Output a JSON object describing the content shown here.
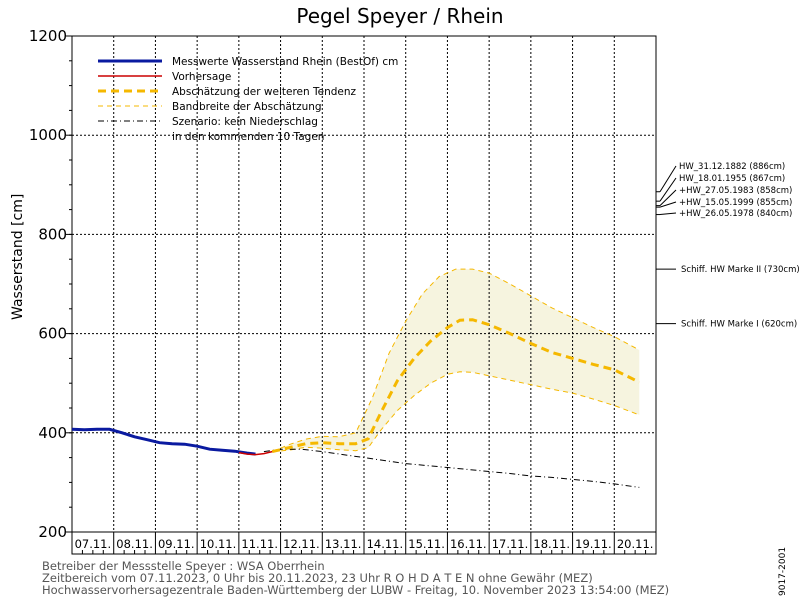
{
  "chart_data": {
    "type": "line",
    "title": "Pegel Speyer / Rhein",
    "ylabel": "Wasserstand [cm]",
    "ylim": [
      200,
      1200
    ],
    "yticks": [
      200,
      400,
      600,
      800,
      1000,
      1200
    ],
    "x_dates": [
      "07.11.",
      "08.11.",
      "09.11.",
      "10.11.",
      "11.11.",
      "12.11.",
      "13.11.",
      "14.11.",
      "15.11.",
      "16.11.",
      "17.11.",
      "18.11.",
      "19.11.",
      "20.11."
    ],
    "xlim_days": [
      0,
      14
    ],
    "grid": true,
    "legend_position": "top-left",
    "legend": [
      {
        "key": "measured",
        "label": "Messwerte Wasserstand Rhein (BestOf)   cm",
        "color": "#0a1aa0",
        "style": "solid-thick"
      },
      {
        "key": "forecast",
        "label": "Vorhersage",
        "color": "#cc0000",
        "style": "solid"
      },
      {
        "key": "trend",
        "label": "Abschätzung der weiteren Tendenz",
        "color": "#f5b800",
        "style": "dashed-thick"
      },
      {
        "key": "band",
        "label": "Bandbreite der Abschätzung",
        "color": "#f5b800",
        "style": "dashed-thin"
      },
      {
        "key": "scenario",
        "label": "Szenario: kein Niederschlag",
        "color": "#000000",
        "style": "dashdot"
      },
      {
        "key": "scenario2",
        "label": "in den kommenden 10 Tagen",
        "color": "",
        "style": "none"
      }
    ],
    "series": [
      {
        "key": "measured",
        "points": [
          [
            0.0,
            407
          ],
          [
            0.3,
            406
          ],
          [
            0.6,
            407
          ],
          [
            0.9,
            407
          ],
          [
            1.2,
            400
          ],
          [
            1.5,
            392
          ],
          [
            1.8,
            386
          ],
          [
            2.1,
            380
          ],
          [
            2.4,
            378
          ],
          [
            2.7,
            377
          ],
          [
            3.0,
            373
          ],
          [
            3.3,
            367
          ],
          [
            3.6,
            365
          ],
          [
            3.9,
            363
          ],
          [
            4.2,
            359
          ],
          [
            4.4,
            357
          ]
        ]
      },
      {
        "key": "forecast",
        "points": [
          [
            4.0,
            360
          ],
          [
            4.2,
            357
          ],
          [
            4.4,
            356
          ],
          [
            4.6,
            358
          ],
          [
            4.8,
            362
          ]
        ]
      },
      {
        "key": "trend",
        "points": [
          [
            4.8,
            362
          ],
          [
            5.2,
            370
          ],
          [
            5.6,
            378
          ],
          [
            6.0,
            380
          ],
          [
            6.4,
            378
          ],
          [
            6.8,
            378
          ],
          [
            7.1,
            388
          ],
          [
            7.4,
            440
          ],
          [
            7.8,
            505
          ],
          [
            8.2,
            550
          ],
          [
            8.6,
            585
          ],
          [
            9.0,
            612
          ],
          [
            9.3,
            627
          ],
          [
            9.6,
            628
          ],
          [
            10.0,
            618
          ],
          [
            10.5,
            600
          ],
          [
            11.0,
            580
          ],
          [
            11.5,
            562
          ],
          [
            12.0,
            550
          ],
          [
            12.5,
            538
          ],
          [
            13.0,
            527
          ],
          [
            13.6,
            502
          ]
        ]
      },
      {
        "key": "band_upper",
        "points": [
          [
            4.8,
            362
          ],
          [
            5.2,
            376
          ],
          [
            5.6,
            387
          ],
          [
            6.0,
            393
          ],
          [
            6.4,
            392
          ],
          [
            6.8,
            400
          ],
          [
            7.2,
            470
          ],
          [
            7.6,
            560
          ],
          [
            8.0,
            625
          ],
          [
            8.4,
            680
          ],
          [
            8.8,
            715
          ],
          [
            9.2,
            730
          ],
          [
            9.6,
            730
          ],
          [
            10.0,
            722
          ],
          [
            10.5,
            700
          ],
          [
            11.0,
            676
          ],
          [
            11.5,
            652
          ],
          [
            12.0,
            632
          ],
          [
            12.5,
            612
          ],
          [
            13.0,
            594
          ],
          [
            13.6,
            567
          ]
        ]
      },
      {
        "key": "band_lower",
        "points": [
          [
            4.8,
            362
          ],
          [
            5.2,
            365
          ],
          [
            5.6,
            371
          ],
          [
            6.0,
            369
          ],
          [
            6.4,
            366
          ],
          [
            6.8,
            364
          ],
          [
            7.1,
            370
          ],
          [
            7.4,
            405
          ],
          [
            7.8,
            445
          ],
          [
            8.2,
            475
          ],
          [
            8.6,
            500
          ],
          [
            9.0,
            518
          ],
          [
            9.3,
            523
          ],
          [
            9.6,
            522
          ],
          [
            10.0,
            515
          ],
          [
            10.5,
            506
          ],
          [
            11.0,
            497
          ],
          [
            11.5,
            488
          ],
          [
            12.0,
            480
          ],
          [
            12.5,
            468
          ],
          [
            13.0,
            455
          ],
          [
            13.6,
            436
          ]
        ]
      },
      {
        "key": "scenario",
        "points": [
          [
            4.6,
            362
          ],
          [
            5.0,
            367
          ],
          [
            5.5,
            367
          ],
          [
            6.0,
            362
          ],
          [
            6.5,
            356
          ],
          [
            7.0,
            350
          ],
          [
            7.5,
            344
          ],
          [
            8.0,
            338
          ],
          [
            8.5,
            334
          ],
          [
            9.0,
            330
          ],
          [
            9.5,
            326
          ],
          [
            10.0,
            322
          ],
          [
            10.5,
            318
          ],
          [
            11.0,
            313
          ],
          [
            11.5,
            310
          ],
          [
            12.0,
            306
          ],
          [
            12.5,
            302
          ],
          [
            13.0,
            297
          ],
          [
            13.6,
            290
          ]
        ]
      }
    ],
    "hw_marks": [
      {
        "label": "HW_31.12.1882 (886cm)",
        "value": 886
      },
      {
        "label": "HW_18.01.1955 (867cm)",
        "value": 867
      },
      {
        "label": "+HW_27.05.1983 (858cm)",
        "value": 858
      },
      {
        "label": "+HW_15.05.1999 (855cm)",
        "value": 855
      },
      {
        "label": "+HW_26.05.1978 (840cm)",
        "value": 840
      }
    ],
    "ship_marks": [
      {
        "label": "Schiff. HW Marke II (730cm)",
        "value": 730
      },
      {
        "label": "Schiff. HW Marke I (620cm)",
        "value": 620
      }
    ]
  },
  "footer": {
    "line1": "Betreiber der Messstelle Speyer : WSA Oberrhein",
    "line2": "Zeitbereich vom 07.11.2023, 0 Uhr bis 20.11.2023, 23 Uhr    R O H D A T E N ohne Gewähr (MEZ)",
    "line3": "Hochwasservorhersagezentrale Baden-Württemberg der LUBW - Freitag, 10. November 2023 13:54:00 (MEZ)"
  },
  "code": "9017-2001"
}
